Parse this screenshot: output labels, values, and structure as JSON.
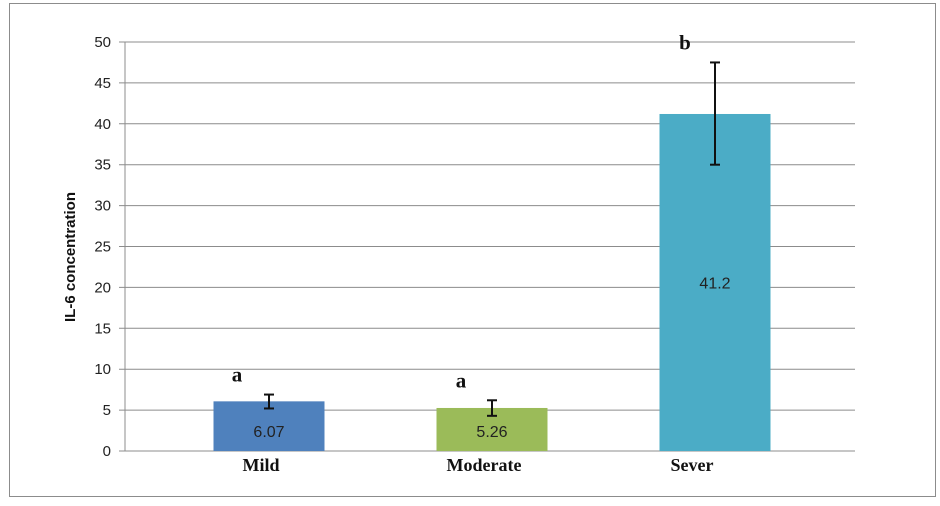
{
  "chart_data": {
    "type": "bar",
    "ylabel": "IL-6 concentration",
    "xlabel": "",
    "title": "",
    "ylim": [
      0,
      50
    ],
    "yticks": [
      0,
      5,
      10,
      15,
      20,
      25,
      30,
      35,
      40,
      45,
      50
    ],
    "grid": true,
    "legend": "none",
    "categories": [
      "Mild",
      "Moderate",
      "Sever"
    ],
    "values": [
      6.07,
      5.26,
      41.2
    ],
    "data_labels": [
      "6.07",
      "5.26",
      "41.2"
    ],
    "error_bars": [
      {
        "low": 5.2,
        "high": 6.9
      },
      {
        "low": 4.3,
        "high": 6.2
      },
      {
        "low": 35.0,
        "high": 47.5
      }
    ],
    "significance_letters": [
      "a",
      "a",
      "b"
    ],
    "colors": [
      "#4f81bd",
      "#9bbb59",
      "#4bacc6"
    ]
  }
}
